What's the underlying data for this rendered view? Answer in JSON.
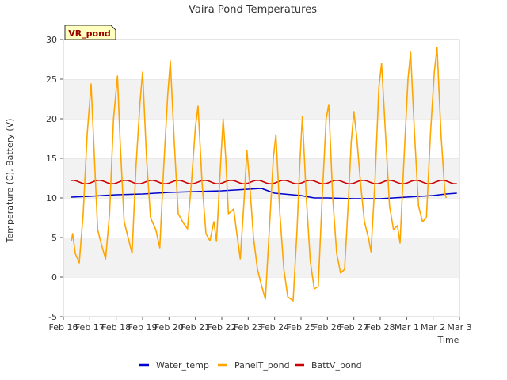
{
  "chart_data": {
    "type": "line",
    "title": "Vaira Pond Temperatures",
    "xlabel": "Time",
    "ylabel": "Temperature (C), Battery (V)",
    "station_label": "VR_pond",
    "xlim": [
      "Feb 16",
      "Mar 3"
    ],
    "ylim": [
      -5,
      30
    ],
    "x_ticks": [
      "Feb 16",
      "Feb 17",
      "Feb 18",
      "Feb 19",
      "Feb 20",
      "Feb 21",
      "Feb 22",
      "Feb 23",
      "Feb 24",
      "Feb 25",
      "Feb 26",
      "Feb 27",
      "Feb 28",
      "Mar 1",
      "Mar 2",
      "Mar 3"
    ],
    "y_ticks": [
      -5,
      0,
      5,
      10,
      15,
      20,
      25,
      30
    ],
    "grid": "horizontal bands",
    "legend_position": "bottom",
    "series": [
      {
        "name": "Water_temp",
        "color": "#0000cc",
        "points": [
          [
            0.3,
            10.1
          ],
          [
            1.0,
            10.2
          ],
          [
            2.0,
            10.4
          ],
          [
            3.0,
            10.5
          ],
          [
            4.0,
            10.7
          ],
          [
            5.0,
            10.8
          ],
          [
            6.0,
            10.9
          ],
          [
            7.0,
            11.1
          ],
          [
            7.5,
            11.2
          ],
          [
            8.0,
            10.6
          ],
          [
            9.0,
            10.3
          ],
          [
            9.5,
            10.0
          ],
          [
            10.0,
            10.0
          ],
          [
            11.0,
            9.9
          ],
          [
            12.0,
            9.9
          ],
          [
            13.0,
            10.1
          ],
          [
            14.0,
            10.3
          ],
          [
            14.5,
            10.5
          ],
          [
            14.9,
            10.6
          ]
        ]
      },
      {
        "name": "PanelT_pond",
        "color": "#ffa500",
        "points": [
          [
            0.3,
            4.5
          ],
          [
            0.35,
            5.5
          ],
          [
            0.45,
            3.0
          ],
          [
            0.6,
            1.8
          ],
          [
            0.75,
            8.0
          ],
          [
            0.9,
            18.0
          ],
          [
            1.05,
            24.4
          ],
          [
            1.15,
            17.0
          ],
          [
            1.3,
            6.0
          ],
          [
            1.45,
            4.0
          ],
          [
            1.6,
            2.3
          ],
          [
            1.75,
            8.0
          ],
          [
            1.9,
            20.0
          ],
          [
            2.05,
            25.4
          ],
          [
            2.15,
            17.0
          ],
          [
            2.3,
            7.0
          ],
          [
            2.45,
            5.0
          ],
          [
            2.6,
            3.0
          ],
          [
            2.75,
            14.0
          ],
          [
            2.9,
            22.0
          ],
          [
            3.0,
            25.9
          ],
          [
            3.15,
            15.0
          ],
          [
            3.3,
            7.5
          ],
          [
            3.5,
            6.0
          ],
          [
            3.65,
            3.7
          ],
          [
            3.8,
            14.0
          ],
          [
            3.95,
            23.0
          ],
          [
            4.05,
            27.3
          ],
          [
            4.2,
            17.0
          ],
          [
            4.35,
            8.0
          ],
          [
            4.55,
            6.8
          ],
          [
            4.7,
            6.1
          ],
          [
            4.85,
            12.0
          ],
          [
            5.0,
            19.0
          ],
          [
            5.1,
            21.6
          ],
          [
            5.25,
            12.0
          ],
          [
            5.4,
            5.5
          ],
          [
            5.55,
            4.6
          ],
          [
            5.7,
            7.0
          ],
          [
            5.8,
            4.5
          ],
          [
            5.95,
            14.0
          ],
          [
            6.05,
            20.0
          ],
          [
            6.15,
            15.0
          ],
          [
            6.25,
            8.0
          ],
          [
            6.35,
            8.3
          ],
          [
            6.45,
            8.6
          ],
          [
            6.55,
            6.0
          ],
          [
            6.7,
            2.3
          ],
          [
            6.85,
            10.0
          ],
          [
            6.95,
            16.0
          ],
          [
            7.05,
            12.0
          ],
          [
            7.2,
            5.0
          ],
          [
            7.35,
            1.0
          ],
          [
            7.5,
            -1.0
          ],
          [
            7.65,
            -2.8
          ],
          [
            7.8,
            6.0
          ],
          [
            7.95,
            15.0
          ],
          [
            8.05,
            18.0
          ],
          [
            8.2,
            8.0
          ],
          [
            8.35,
            1.0
          ],
          [
            8.5,
            -2.5
          ],
          [
            8.7,
            -3.0
          ],
          [
            8.85,
            6.0
          ],
          [
            8.95,
            14.0
          ],
          [
            9.05,
            20.3
          ],
          [
            9.2,
            10.0
          ],
          [
            9.35,
            2.0
          ],
          [
            9.5,
            -1.5
          ],
          [
            9.65,
            -1.2
          ],
          [
            9.8,
            10.0
          ],
          [
            9.95,
            20.0
          ],
          [
            10.05,
            21.8
          ],
          [
            10.2,
            10.0
          ],
          [
            10.35,
            3.0
          ],
          [
            10.5,
            0.5
          ],
          [
            10.65,
            1.0
          ],
          [
            10.8,
            10.0
          ],
          [
            10.9,
            17.0
          ],
          [
            11.0,
            20.9
          ],
          [
            11.1,
            18.0
          ],
          [
            11.25,
            12.0
          ],
          [
            11.4,
            7.0
          ],
          [
            11.55,
            5.0
          ],
          [
            11.65,
            3.2
          ],
          [
            11.8,
            12.0
          ],
          [
            11.95,
            24.0
          ],
          [
            12.05,
            27.0
          ],
          [
            12.2,
            18.0
          ],
          [
            12.35,
            9.0
          ],
          [
            12.5,
            6.0
          ],
          [
            12.65,
            6.5
          ],
          [
            12.75,
            4.3
          ],
          [
            12.9,
            15.0
          ],
          [
            13.05,
            25.0
          ],
          [
            13.15,
            28.4
          ],
          [
            13.3,
            18.0
          ],
          [
            13.45,
            9.0
          ],
          [
            13.6,
            7.0
          ],
          [
            13.75,
            7.5
          ],
          [
            13.9,
            18.0
          ],
          [
            14.05,
            26.0
          ],
          [
            14.15,
            29.0
          ],
          [
            14.3,
            18.0
          ],
          [
            14.45,
            10.5
          ],
          [
            14.5,
            10.0
          ]
        ]
      },
      {
        "name": "BattV_pond",
        "color": "#cc0000",
        "mean": 12.0,
        "amplitude": 0.22,
        "x_range": [
          0.3,
          14.9
        ]
      }
    ]
  }
}
